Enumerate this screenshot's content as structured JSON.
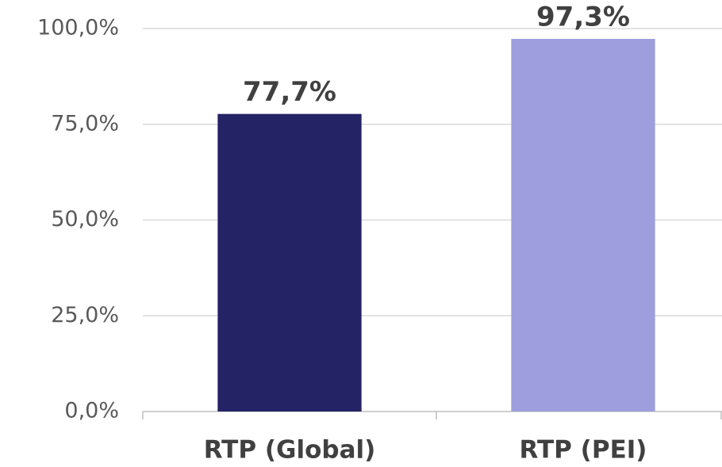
{
  "chart_data": {
    "type": "bar",
    "categories": [
      "RTP (Global)",
      "RTP (PEI)"
    ],
    "values": [
      77.7,
      97.3
    ],
    "value_labels": [
      "77,7%",
      "97,3%"
    ],
    "colors": [
      "#232366",
      "#9e9ede"
    ],
    "ylim": [
      0,
      100
    ],
    "yticks": [
      {
        "value": 0,
        "label": "0,0%"
      },
      {
        "value": 25,
        "label": "25,0%"
      },
      {
        "value": 50,
        "label": "50,0%"
      },
      {
        "value": 75,
        "label": "75,0%"
      },
      {
        "value": 100,
        "label": "100,0%"
      }
    ],
    "grid": true
  }
}
